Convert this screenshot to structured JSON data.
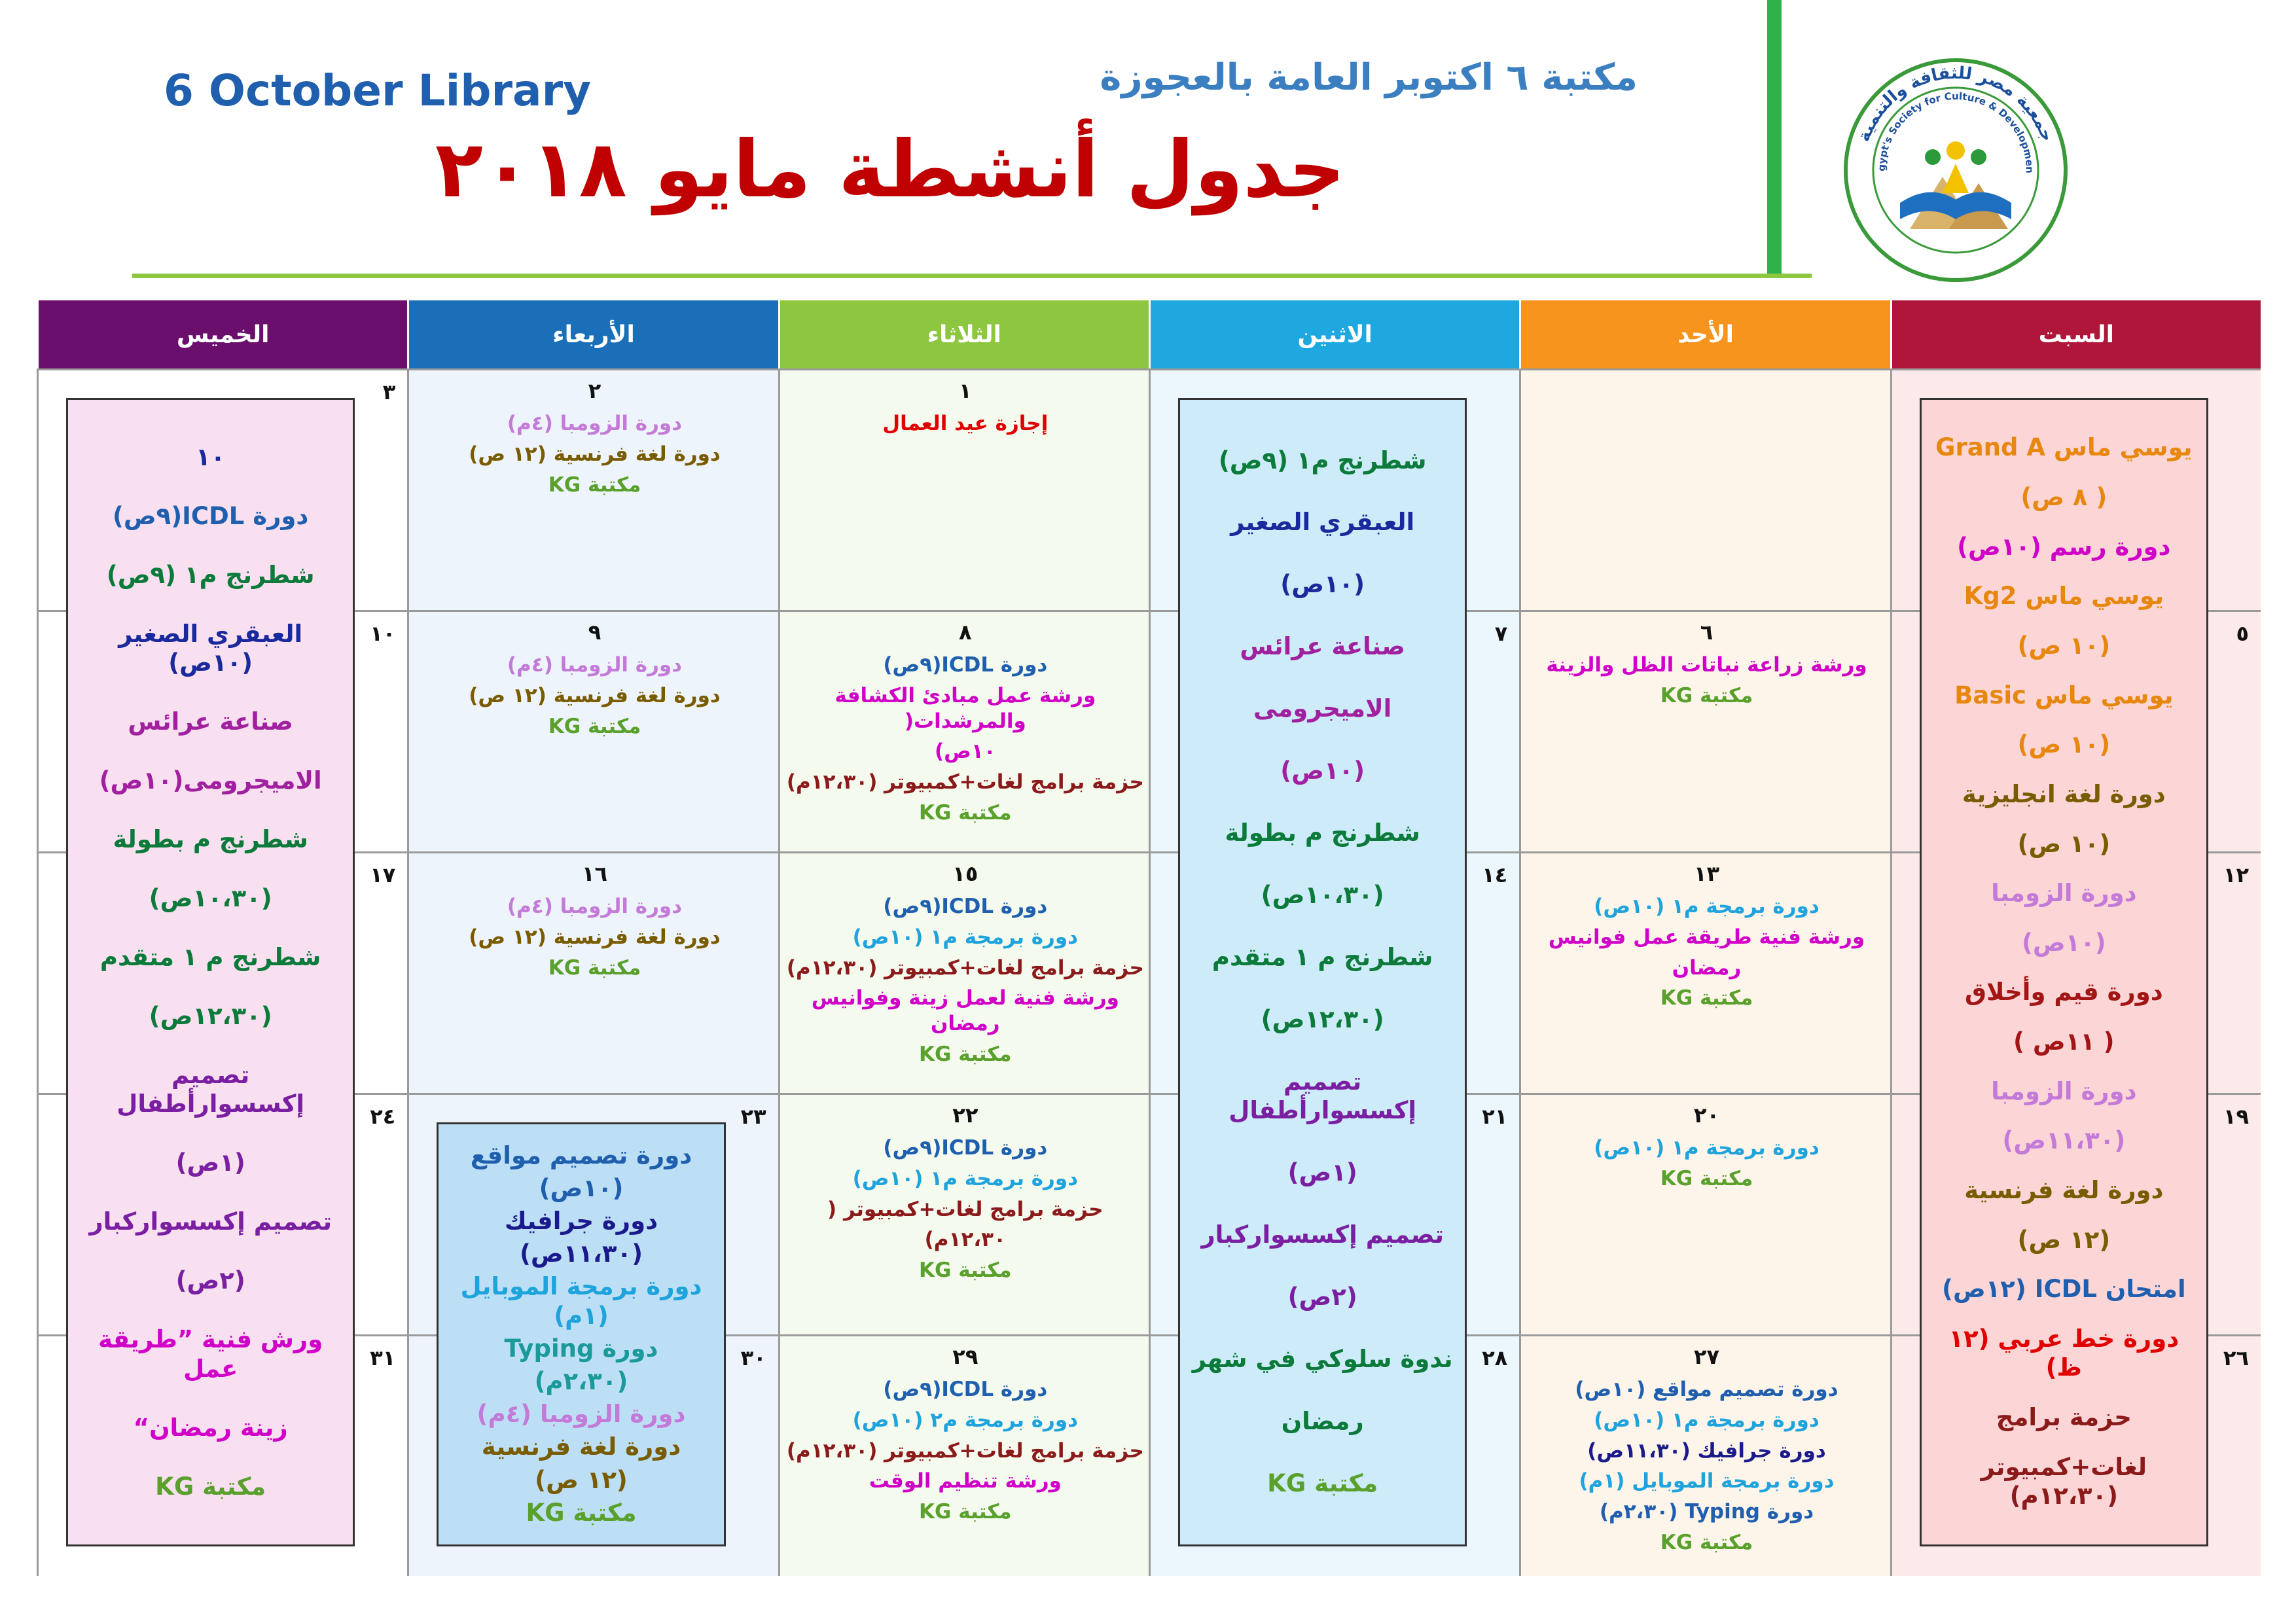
{
  "header": {
    "library_en": "6 October Library",
    "library_ar": "مكتبة ٦ اكتوبر العامة بالعجوزة",
    "title": "جدول أنشطة مايو ٢٠١٨",
    "logo_ar": "جمعية مصر للثقافة والتنمية",
    "logo_en": "Egypt's Society for Culture & Development"
  },
  "days": [
    {
      "name": "السبت",
      "color": "#b0163a",
      "tint": "#fce9e9"
    },
    {
      "name": "الأحد",
      "color": "#f7941d",
      "tint": "#fdf4ea"
    },
    {
      "name": "الاثنين",
      "color": "#1fa8e0",
      "tint": "#ebf7fc"
    },
    {
      "name": "الثلاثاء",
      "color": "#8dc63f",
      "tint": "#f5faef"
    },
    {
      "name": "الأربعاء",
      "color": "#1a6fb8",
      "tint": "#eef4fb"
    },
    {
      "name": "الخميس",
      "color": "#6a0f6b",
      "tint": "#ffffff"
    }
  ],
  "weeks": [
    {
      "cells": [
        {
          "box": {
            "rowspan": 5,
            "fill": "#fcd6d6",
            "lines": [
              {
                "text": "يوسي ماس Grand A",
                "color": "#e8870e"
              },
              {
                "text": "( ٨ ص)",
                "color": "#e8870e"
              },
              {
                "text": "دورة رسم (١٠ص)",
                "color": "#d000c8"
              },
              {
                "text": "يوسي ماس Kg2",
                "color": "#e8870e"
              },
              {
                "text": "(١٠ ص)",
                "color": "#e8870e"
              },
              {
                "text": "يوسي ماس Basic",
                "color": "#e8870e"
              },
              {
                "text": "(١٠ ص)",
                "color": "#e8870e"
              },
              {
                "text": "دورة لغة انجليزية",
                "color": "#7a5c00"
              },
              {
                "text": "(١٠ ص)",
                "color": "#7a5c00"
              },
              {
                "text": "دورة الزومبا",
                "color": "#c47ad8"
              },
              {
                "text": "(١٠ص)",
                "color": "#c47ad8"
              },
              {
                "text": "دورة قيم وأخلاق",
                "color": "#a31515"
              },
              {
                "text": "( ١١ص )",
                "color": "#a31515"
              },
              {
                "text": "دورة الزومبا",
                "color": "#c47ad8"
              },
              {
                "text": "(١١،٣٠ص)",
                "color": "#c47ad8"
              },
              {
                "text": "دورة لغة فرنسية",
                "color": "#7a5c00"
              },
              {
                "text": "(١٢ ص)",
                "color": "#7a5c00"
              },
              {
                "text": "امتحان ICDL (١٢ص)",
                "color": "#1f5fae"
              },
              {
                "text": "دورة خط عربي (١٢ ظ)",
                "color": "#e00000"
              },
              {
                "text": "حزمة برامج",
                "color": "#8b1a1a"
              },
              {
                "text": "لغات+كمبيوتر (١٢،٣٠م)",
                "color": "#8b1a1a"
              }
            ]
          }
        },
        {},
        {
          "box": {
            "rowspan": 5,
            "fill": "#cdebf8",
            "lines": [
              {
                "text": "شطرنج م١ (٩ص)",
                "color": "#0b7a3a"
              },
              {
                "text": "العبقري الصغير",
                "color": "#1a2a9c"
              },
              {
                "text": "(١٠ص)",
                "color": "#1a2a9c"
              },
              {
                "text": "صناعة عرائس",
                "color": "#a0209f"
              },
              {
                "text": "الاميجرومى",
                "color": "#a0209f"
              },
              {
                "text": "(١٠ص)",
                "color": "#a0209f"
              },
              {
                "text": "شطرنج م بطولة",
                "color": "#0b7a3a"
              },
              {
                "text": "(١٠،٣٠ص)",
                "color": "#0b7a3a"
              },
              {
                "text": "شطرنج م ١ متقدم",
                "color": "#0b7a3a"
              },
              {
                "text": "(١٢،٣٠ص)",
                "color": "#0b7a3a"
              },
              {
                "text": "تصميم إكسسوارأطفال",
                "color": "#7a1fa2"
              },
              {
                "text": "(١ص)",
                "color": "#7a1fa2"
              },
              {
                "text": "تصميم إكسسواركبار",
                "color": "#7a1fa2"
              },
              {
                "text": "(٢ص)",
                "color": "#7a1fa2"
              },
              {
                "text": "ندوة سلوكي في شهر",
                "color": "#0b7a3a"
              },
              {
                "text": "رمضان",
                "color": "#0b7a3a"
              },
              {
                "text": "مكتبة KG",
                "color": "#5aa02c"
              }
            ]
          }
        },
        {
          "date": "١",
          "lines": [
            {
              "text": "إجازة عيد العمال",
              "color": "#e00000"
            }
          ]
        },
        {
          "date": "٢",
          "lines": [
            {
              "text": "دورة الزومبا (٤م)",
              "color": "#c47ad8"
            },
            {
              "text": "دورة لغة فرنسية (١٢ ص)",
              "color": "#7a5c00"
            },
            {
              "text": "مكتبة KG",
              "color": "#5aa02c"
            }
          ]
        },
        {
          "date": "٣",
          "box": {
            "rowspan": 5,
            "fill": "#f8e0f0",
            "lines": [
              {
                "text": "١٠",
                "color": "#1a2a9c"
              },
              {
                "text": "دورة ICDL(٩ص)",
                "color": "#1f5fae"
              },
              {
                "text": "شطرنج م١ (٩ص)",
                "color": "#0b7a3a"
              },
              {
                "text": "العبقري الصغير (١٠ص)",
                "color": "#1a2a9c"
              },
              {
                "text": "صناعة عرائس",
                "color": "#a0209f"
              },
              {
                "text": "الاميجرومى(١٠ص)",
                "color": "#a0209f"
              },
              {
                "text": "شطرنج م بطولة",
                "color": "#0b7a3a"
              },
              {
                "text": "(١٠،٣٠ص)",
                "color": "#0b7a3a"
              },
              {
                "text": "شطرنج م ١ متقدم",
                "color": "#0b7a3a"
              },
              {
                "text": "(١٢،٣٠ص)",
                "color": "#0b7a3a"
              },
              {
                "text": "تصميم إكسسوارأطفال",
                "color": "#7a1fa2"
              },
              {
                "text": "(١ص)",
                "color": "#7a1fa2"
              },
              {
                "text": "تصميم إكسسواركبار",
                "color": "#7a1fa2"
              },
              {
                "text": "(٢ص)",
                "color": "#7a1fa2"
              },
              {
                "text": "ورش فنية ”طريقة عمل",
                "color": "#d000c8"
              },
              {
                "text": "زينة رمضان“",
                "color": "#d000c8"
              },
              {
                "text": "مكتبة KG",
                "color": "#5aa02c"
              }
            ]
          }
        }
      ]
    },
    {
      "cells": [
        {
          "date": "٥"
        },
        {
          "date": "٦",
          "lines": [
            {
              "text": "ورشة زراعة نباتات الظل والزينة",
              "color": "#d000c8"
            },
            {
              "text": "مكتبة KG",
              "color": "#5aa02c"
            }
          ]
        },
        {
          "date": "٧"
        },
        {
          "date": "٨",
          "lines": [
            {
              "text": "دورة ICDL(٩ص)",
              "color": "#1f5fae"
            },
            {
              "text": "ورشة عمل مبادئ الكشافة والمرشدات(",
              "color": "#d000c8"
            },
            {
              "text": "١٠ص)",
              "color": "#d000c8"
            },
            {
              "text": "حزمة برامج لغات+كمبيوتر (١٢،٣٠م)",
              "color": "#8b1a1a"
            },
            {
              "text": "مكتبة KG",
              "color": "#5aa02c"
            }
          ]
        },
        {
          "date": "٩",
          "lines": [
            {
              "text": "دورة الزومبا (٤م)",
              "color": "#c47ad8"
            },
            {
              "text": "دورة لغة فرنسية (١٢ ص)",
              "color": "#7a5c00"
            },
            {
              "text": "مكتبة KG",
              "color": "#5aa02c"
            }
          ]
        },
        {
          "date": "١٠"
        }
      ]
    },
    {
      "cells": [
        {
          "date": "١٢"
        },
        {
          "date": "١٣",
          "lines": [
            {
              "text": "دورة برمجة م١ (١٠ص)",
              "color": "#1ea3dc"
            },
            {
              "text": "ورشة فنية طريقة عمل فوانيس",
              "color": "#d000c8"
            },
            {
              "text": "رمضان",
              "color": "#d000c8"
            },
            {
              "text": "مكتبة KG",
              "color": "#5aa02c"
            }
          ]
        },
        {
          "date": "١٤"
        },
        {
          "date": "١٥",
          "lines": [
            {
              "text": "دورة ICDL(٩ص)",
              "color": "#1f5fae"
            },
            {
              "text": "دورة برمجة م١ (١٠ص)",
              "color": "#1ea3dc"
            },
            {
              "text": "حزمة برامج لغات+كمبيوتر (١٢،٣٠م)",
              "color": "#8b1a1a"
            },
            {
              "text": "ورشة فنية لعمل زينة وفوانيس رمضان",
              "color": "#d000c8"
            },
            {
              "text": "مكتبة KG",
              "color": "#5aa02c"
            }
          ]
        },
        {
          "date": "١٦",
          "lines": [
            {
              "text": "دورة الزومبا (٤م)",
              "color": "#c47ad8"
            },
            {
              "text": "دورة لغة فرنسية (١٢ ص)",
              "color": "#7a5c00"
            },
            {
              "text": "مكتبة KG",
              "color": "#5aa02c"
            }
          ]
        },
        {
          "date": "١٧"
        }
      ]
    },
    {
      "cells": [
        {
          "date": "١٩"
        },
        {
          "date": "٢٠",
          "lines": [
            {
              "text": "دورة برمجة م١ (١٠ص)",
              "color": "#1ea3dc"
            },
            {
              "text": "مكتبة KG",
              "color": "#5aa02c"
            }
          ]
        },
        {
          "date": "٢١"
        },
        {
          "date": "٢٢",
          "lines": [
            {
              "text": "دورة ICDL(٩ص)",
              "color": "#1f5fae"
            },
            {
              "text": "دورة برمجة م١ (١٠ص)",
              "color": "#1ea3dc"
            },
            {
              "text": "حزمة برامج لغات+كمبيوتر (",
              "color": "#8b1a1a"
            },
            {
              "text": "١٢،٣٠م)",
              "color": "#8b1a1a"
            },
            {
              "text": "مكتبة KG",
              "color": "#5aa02c"
            }
          ]
        },
        {
          "date": "٢٣",
          "box": {
            "rowspan": 2,
            "fill": "#bddff5",
            "lines": [
              {
                "text": "دورة تصميم مواقع",
                "color": "#1f5fae"
              },
              {
                "text": "(١٠ص)",
                "color": "#1f5fae"
              },
              {
                "text": "دورة جرافيك",
                "color": "#1a1a8c"
              },
              {
                "text": "(١١،٣٠ص)",
                "color": "#1a1a8c"
              },
              {
                "text": "دورة برمجة الموبايل (١م)",
                "color": "#1ea3dc"
              },
              {
                "text": "دورة Typing",
                "color": "#1a9a9a"
              },
              {
                "text": "(٢،٣٠م)",
                "color": "#1a9a9a"
              },
              {
                "text": "دورة الزومبا (٤م)",
                "color": "#c47ad8"
              },
              {
                "text": "دورة لغة فرنسية",
                "color": "#7a5c00"
              },
              {
                "text": "(١٢ ص)",
                "color": "#7a5c00"
              },
              {
                "text": "مكتبة KG",
                "color": "#5aa02c"
              }
            ]
          }
        },
        {
          "date": "٢٤"
        }
      ]
    },
    {
      "cells": [
        {
          "date": "٢٦"
        },
        {
          "date": "٢٧",
          "lines": [
            {
              "text": "دورة تصميم مواقع (١٠ص)",
              "color": "#1f5fae"
            },
            {
              "text": "دورة برمجة م١ (١٠ص)",
              "color": "#1ea3dc"
            },
            {
              "text": "دورة جرافيك (١١،٣٠ص)",
              "color": "#1a1a8c"
            },
            {
              "text": "دورة برمجة الموبايل (١م)",
              "color": "#1ea3dc"
            },
            {
              "text": "دورة Typing (٢،٣٠م)",
              "color": "#1f5fae"
            },
            {
              "text": "مكتبة KG",
              "color": "#5aa02c"
            }
          ]
        },
        {
          "date": "٢٨"
        },
        {
          "date": "٢٩",
          "lines": [
            {
              "text": "دورة ICDL(٩ص)",
              "color": "#1f5fae"
            },
            {
              "text": "دورة برمجة م٢ (١٠ص)",
              "color": "#1ea3dc"
            },
            {
              "text": "حزمة برامج لغات+كمبيوتر (١٢،٣٠م)",
              "color": "#8b1a1a"
            },
            {
              "text": "ورشة تنظيم الوقت",
              "color": "#d000c8"
            },
            {
              "text": "مكتبة KG",
              "color": "#5aa02c"
            }
          ]
        },
        {
          "date": "٣٠"
        },
        {
          "date": "٣١"
        }
      ]
    }
  ]
}
